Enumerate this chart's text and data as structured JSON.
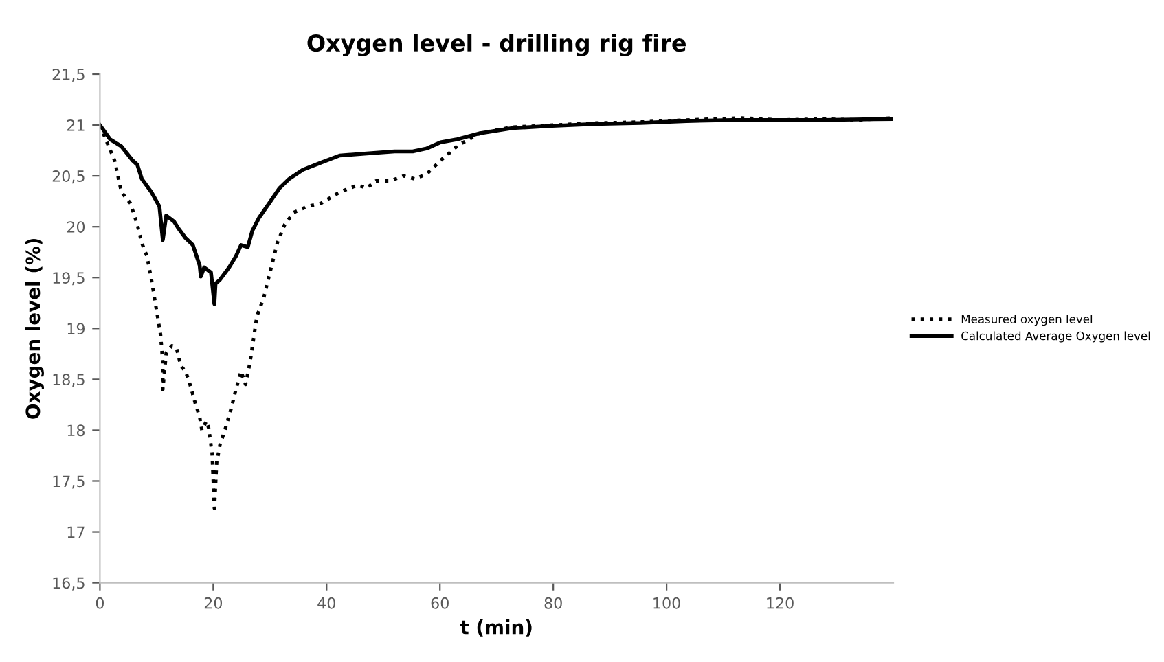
{
  "chart_data": {
    "type": "line",
    "title": "Oxygen level - drilling rig fire",
    "xlabel": "t (min)",
    "ylabel": "Oxygen level (%)",
    "xlim": [
      0,
      140
    ],
    "xticks": [
      0,
      20,
      40,
      60,
      80,
      100,
      120
    ],
    "ylim": [
      16.5,
      21.5
    ],
    "yticks": [
      {
        "value": 16.5,
        "label": "16,5"
      },
      17,
      {
        "value": 17.5,
        "label": "17,5"
      },
      18,
      {
        "value": 18.5,
        "label": "18,5"
      },
      19,
      {
        "value": 19.5,
        "label": "19,5"
      },
      20,
      {
        "value": 20.5,
        "label": "20,5"
      },
      21,
      {
        "value": 21.5,
        "label": "21,5"
      }
    ],
    "grid": false,
    "legend": "right",
    "marker": "none",
    "series": [
      {
        "name": "Measured oxygen level",
        "color": "#000000",
        "line_style": "dotted",
        "x": [
          0,
          1.4,
          2.6,
          3.8,
          5.4,
          6.6,
          7.4,
          8.3,
          9.1,
          9.9,
          10.7,
          11.1,
          11.1,
          11.7,
          12.7,
          13.5,
          14.3,
          15.1,
          15.9,
          16.8,
          17.6,
          18.0,
          18.8,
          19.2,
          19.8,
          20.2,
          20.6,
          21.2,
          22.0,
          23.2,
          24.0,
          24.9,
          25.7,
          26.5,
          27.7,
          28.9,
          30.1,
          31.3,
          32.6,
          34.2,
          36.6,
          39.0,
          42.3,
          45.5,
          47.1,
          48.7,
          51.2,
          53.6,
          55.6,
          57.7,
          60.1,
          63.2,
          67.1,
          72.8,
          80,
          87.3,
          95.4,
          103.5,
          113.2,
          120,
          127.7,
          134,
          139.8
        ],
        "values": [
          21.0,
          20.81,
          20.65,
          20.34,
          20.23,
          20.02,
          19.84,
          19.71,
          19.48,
          19.21,
          18.94,
          18.67,
          18.4,
          18.76,
          18.83,
          18.81,
          18.63,
          18.58,
          18.45,
          18.27,
          18.13,
          18.0,
          18.09,
          18.02,
          17.77,
          17.23,
          17.68,
          17.86,
          17.99,
          18.22,
          18.4,
          18.58,
          18.45,
          18.67,
          19.12,
          19.3,
          19.57,
          19.84,
          20.02,
          20.14,
          20.2,
          20.23,
          20.34,
          20.41,
          20.38,
          20.45,
          20.45,
          20.5,
          20.47,
          20.52,
          20.65,
          20.8,
          20.92,
          20.98,
          21.0,
          21.02,
          21.03,
          21.05,
          21.07,
          21.05,
          21.06,
          21.05,
          21.07
        ]
      },
      {
        "name": "Calculated Average Oxygen level",
        "color": "#000000",
        "line_style": "solid",
        "x": [
          0,
          1.8,
          3.8,
          5.8,
          6.6,
          7.4,
          9.1,
          10.5,
          11.1,
          11.7,
          13.1,
          13.9,
          15.1,
          16.4,
          17.6,
          17.8,
          18.4,
          19.6,
          20.2,
          20.4,
          21.2,
          22.8,
          24.0,
          24.9,
          26.1,
          26.9,
          28.1,
          30.1,
          31.7,
          33.4,
          35.8,
          39.0,
          42.3,
          47.1,
          52.0,
          55.2,
          57.7,
          60.1,
          63.1,
          67.1,
          72.8,
          79.2,
          87.3,
          95.4,
          103.5,
          111.6,
          119.6,
          127.7,
          139.8
        ],
        "values": [
          21.0,
          20.86,
          20.79,
          20.65,
          20.61,
          20.47,
          20.34,
          20.2,
          19.87,
          20.11,
          20.05,
          19.98,
          19.89,
          19.82,
          19.62,
          19.51,
          19.6,
          19.55,
          19.24,
          19.44,
          19.48,
          19.6,
          19.71,
          19.82,
          19.8,
          19.96,
          20.09,
          20.25,
          20.38,
          20.47,
          20.56,
          20.63,
          20.7,
          20.72,
          20.74,
          20.74,
          20.77,
          20.83,
          20.86,
          20.92,
          20.97,
          20.99,
          21.01,
          21.02,
          21.04,
          21.05,
          21.05,
          21.05,
          21.06
        ]
      }
    ]
  }
}
